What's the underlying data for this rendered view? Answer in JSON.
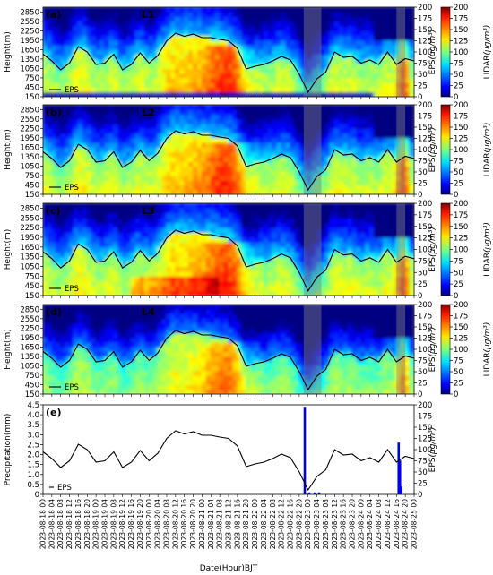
{
  "chart_data": {
    "type": "heatmap",
    "x_axis": {
      "label": "Date(Hour)BJT",
      "ticks": [
        "2023-08-18 00",
        "2023-08-18 04",
        "2023-08-18 08",
        "2023-08-18 12",
        "2023-08-18 16",
        "2023-08-18 20",
        "2023-08-19 00",
        "2023-08-19 04",
        "2023-08-19 08",
        "2023-08-19 12",
        "2023-08-19 16",
        "2023-08-19 20",
        "2023-08-20 00",
        "2023-08-20 04",
        "2023-08-20 08",
        "2023-08-20 12",
        "2023-08-20 16",
        "2023-08-20 20",
        "2023-08-21 00",
        "2023-08-21 04",
        "2023-08-21 08",
        "2023-08-21 12",
        "2023-08-21 16",
        "2023-08-21 20",
        "2023-08-22 00",
        "2023-08-22 04",
        "2023-08-22 08",
        "2023-08-22 12",
        "2023-08-22 16",
        "2023-08-22 20",
        "2023-08-23 00",
        "2023-08-23 04",
        "2023-08-23 08",
        "2023-08-23 12",
        "2023-08-23 16",
        "2023-08-23 20",
        "2023-08-24 00",
        "2023-08-24 04",
        "2023-08-24 08",
        "2023-08-24 12",
        "2023-08-24 16",
        "2023-08-24 20",
        "2023-08-25 00"
      ]
    },
    "heat_y_axis": {
      "label": "Height(m)",
      "ticks": [
        150,
        450,
        750,
        1050,
        1350,
        1650,
        1950,
        2250,
        2550,
        2850
      ],
      "ylim": [
        150,
        3000
      ]
    },
    "eps_axis": {
      "label_main": "EPS",
      "label_unit": "(µg/m³)",
      "ticks": [
        0,
        25,
        50,
        75,
        100,
        125,
        150,
        175,
        200
      ],
      "ylim": [
        0,
        200
      ]
    },
    "colorbar": {
      "label_main": "LIDAR",
      "label_unit": "(µg/m³)",
      "ticks": [
        0,
        25,
        50,
        75,
        100,
        125,
        150,
        175,
        200
      ],
      "range": [
        0,
        200
      ]
    },
    "precip_axis": {
      "label": "Precipitation(mm)",
      "ticks": [
        0,
        0.5,
        1.0,
        1.5,
        2.0,
        2.5,
        3.0,
        3.5,
        4.0,
        4.5
      ],
      "tick_labels": [
        "0",
        "0.5",
        "1.0",
        "1.5",
        "2.0",
        "2.5",
        "3.0",
        "3.5",
        "4.0",
        "4.5"
      ],
      "ylim": [
        0,
        4.5
      ]
    },
    "eps_hours": [
      0,
      4,
      8,
      12,
      16,
      20,
      24,
      28,
      32,
      36,
      40,
      44,
      48,
      52,
      56,
      60,
      64,
      68,
      72,
      76,
      80,
      84,
      88,
      92,
      96,
      100,
      104,
      108,
      112,
      116,
      120,
      124,
      128,
      132,
      136,
      140,
      144,
      148,
      152,
      156,
      160,
      164,
      168
    ],
    "eps_values": [
      95,
      80,
      60,
      75,
      112,
      100,
      72,
      75,
      95,
      60,
      72,
      98,
      75,
      92,
      125,
      142,
      135,
      140,
      132,
      132,
      128,
      125,
      108,
      62,
      68,
      72,
      80,
      90,
      82,
      50,
      10,
      40,
      55,
      100,
      88,
      90,
      75,
      82,
      72,
      100,
      72,
      85,
      80
    ],
    "shaded_hours": [
      [
        118,
        126
      ],
      [
        160,
        164
      ]
    ],
    "precipitation": [
      {
        "hour": 118.5,
        "value": 4.4
      },
      {
        "hour": 120.5,
        "value": 0.1
      },
      {
        "hour": 123,
        "value": 0.1
      },
      {
        "hour": 125,
        "value": 0.1
      },
      {
        "hour": 161,
        "value": 2.6
      },
      {
        "hour": 161.6,
        "value": 1.7
      },
      {
        "hour": 162.2,
        "value": 0.4
      }
    ],
    "panels": [
      {
        "tag": "(a)",
        "title": "L1",
        "legend": "EPS"
      },
      {
        "tag": "(b)",
        "title": "L2",
        "legend": "EPS"
      },
      {
        "tag": "(c)",
        "title": "L3",
        "legend": "EPS"
      },
      {
        "tag": "(d)",
        "title": "L4",
        "legend": "EPS"
      }
    ],
    "precip_panel": {
      "tag": "(e)",
      "legend": "EPS"
    }
  }
}
